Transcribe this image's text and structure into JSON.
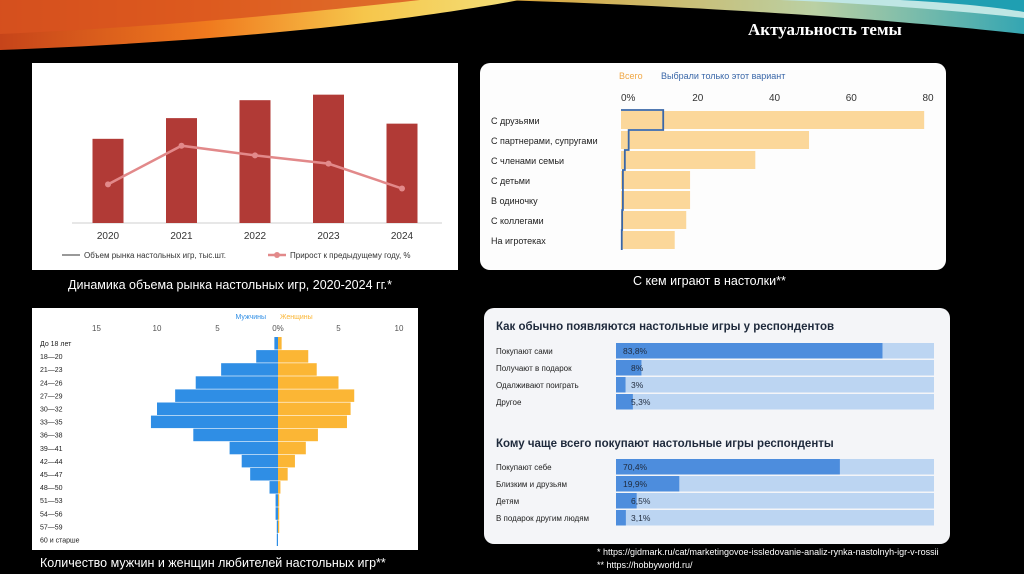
{
  "slide": {
    "title": "Актуальность темы"
  },
  "colors": {
    "bar": "#b13a36",
    "line": "#e2898a",
    "peach": "#fbd79a",
    "blue_line": "#3a67a8",
    "male": "#2f8ee5",
    "female": "#fbb635",
    "dark_blue": "#4d8ddd",
    "light_blue": "#bcd5f2"
  },
  "captions": {
    "market": "Динамика объема рынка настольных игр, 2020-2024 гг.*",
    "with_whom": "С кем играют в настолки**",
    "gender": "Количество мужчин и женщин любителей настольных игр**"
  },
  "sources": {
    "s1": "* https://gidmark.ru/cat/marketingovoe-issledovanie-analiz-rynka-nastolnyh-igr-v-rossii",
    "s2": "** https://hobbyworld.ru/"
  },
  "chart_data": [
    {
      "type": "bar",
      "categories": [
        "2020",
        "2021",
        "2022",
        "2023",
        "2024"
      ],
      "series": [
        {
          "name": "Объем рынка настольных игр, тыс.шт.",
          "kind": "bar",
          "values": [
            6.1,
            7.6,
            8.9,
            9.3,
            7.2
          ]
        },
        {
          "name": "Прирост к предыдущему году, %",
          "kind": "line",
          "values": [
            2.8,
            5.6,
            4.9,
            4.3,
            2.5
          ]
        }
      ],
      "ylim": [
        0,
        10
      ]
    },
    {
      "type": "bar",
      "orientation": "horizontal",
      "legend": [
        "Всего",
        "Выбрали только этот вариант"
      ],
      "categories": [
        "С друзьями",
        "С партнерами, супругами",
        "С членами семьи",
        "С детьми",
        "В одиночку",
        "С коллегами",
        "На игротеках"
      ],
      "x_ticks": [
        "0%",
        "20",
        "40",
        "60",
        "80"
      ],
      "xlim": [
        0,
        80
      ],
      "series": [
        {
          "name": "Всего",
          "values": [
            79,
            49,
            35,
            18,
            18,
            17,
            14
          ]
        },
        {
          "name": "Выбрали только этот вариант",
          "values": [
            11,
            2,
            1,
            0.5,
            0.5,
            0.3,
            0.2
          ]
        }
      ]
    },
    {
      "type": "bar",
      "orientation": "horizontal",
      "subtype": "population-pyramid",
      "legend": [
        "Мужчины",
        "Женщины"
      ],
      "categories": [
        "До 18 лет",
        "18—20",
        "21—23",
        "24—26",
        "27—29",
        "30—32",
        "33—35",
        "36—38",
        "39—41",
        "42—44",
        "45—47",
        "48—50",
        "51—53",
        "54—56",
        "57—59",
        "60 и старше"
      ],
      "left_ticks": [
        "15",
        "10",
        "5",
        "0%"
      ],
      "right_ticks": [
        "5",
        "10"
      ],
      "series": [
        {
          "name": "Мужчины",
          "values": [
            0.3,
            1.8,
            4.7,
            6.8,
            8.5,
            10.0,
            10.5,
            7.0,
            4.0,
            3.0,
            2.3,
            0.7,
            0.2,
            0.2,
            0.1,
            0.1
          ]
        },
        {
          "name": "Женщины",
          "values": [
            0.3,
            2.5,
            3.2,
            5.0,
            6.3,
            6.0,
            5.7,
            3.3,
            2.3,
            1.4,
            0.8,
            0.2,
            0.1,
            0.1,
            0.1,
            0.0
          ]
        }
      ]
    },
    {
      "type": "bar",
      "orientation": "horizontal",
      "title": "Как обычно появляются настольные игры у респондентов",
      "categories": [
        "Покупают сами",
        "Получают в подарок",
        "Одалживают поиграть",
        "Другое"
      ],
      "values": [
        83.8,
        8,
        3,
        5.3
      ],
      "labels": [
        "83,8%",
        "8%",
        "3%",
        "5,3%"
      ],
      "xlim": [
        0,
        100
      ]
    },
    {
      "type": "bar",
      "orientation": "horizontal",
      "title": "Кому чаще всего покупают настольные игры респонденты",
      "categories": [
        "Покупают себе",
        "Близким и друзьям",
        "Детям",
        "В подарок другим людям"
      ],
      "values": [
        70.4,
        19.9,
        6.5,
        3.1
      ],
      "labels": [
        "70,4%",
        "19,9%",
        "6,5%",
        "3,1%"
      ],
      "xlim": [
        0,
        100
      ]
    }
  ]
}
